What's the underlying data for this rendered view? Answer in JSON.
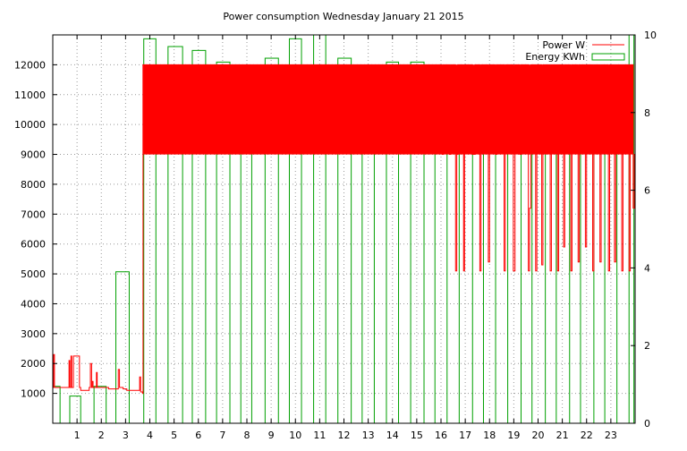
{
  "chart_data": {
    "type": "bar",
    "title": "Power consumption Wednesday January 21 2015",
    "xlabel": "",
    "ylabel": "",
    "xlim": [
      0,
      24
    ],
    "ylim": [
      0,
      13000
    ],
    "y2lim": [
      0,
      10
    ],
    "grid": true,
    "legend_position": "top-right",
    "x_ticks": [
      "1",
      "2",
      "3",
      "4",
      "5",
      "6",
      "7",
      "8",
      "9",
      "10",
      "11",
      "12",
      "13",
      "14",
      "15",
      "16",
      "17",
      "18",
      "19",
      "20",
      "21",
      "22",
      "23"
    ],
    "y_ticks": [
      1000,
      2000,
      3000,
      4000,
      5000,
      6000,
      7000,
      8000,
      9000,
      10000,
      11000,
      12000
    ],
    "y2_ticks": [
      0,
      2,
      4,
      6,
      8,
      10
    ],
    "colors": {
      "power": "#ff0000",
      "energy": "#00a000",
      "grid": "#999999"
    },
    "series": [
      {
        "name": "Power W",
        "axis": "y",
        "style": "step-line",
        "points": [
          [
            0.0,
            1200
          ],
          [
            0.03,
            2300
          ],
          [
            0.07,
            1200
          ],
          [
            0.3,
            1200
          ],
          [
            0.62,
            1200
          ],
          [
            0.67,
            2100
          ],
          [
            0.7,
            1200
          ],
          [
            0.75,
            2250
          ],
          [
            0.78,
            1200
          ],
          [
            0.85,
            2250
          ],
          [
            1.0,
            2250
          ],
          [
            1.1,
            1200
          ],
          [
            1.15,
            1100
          ],
          [
            1.5,
            1200
          ],
          [
            1.55,
            2000
          ],
          [
            1.6,
            1200
          ],
          [
            1.62,
            1400
          ],
          [
            1.66,
            1200
          ],
          [
            1.8,
            1700
          ],
          [
            1.83,
            1200
          ],
          [
            2.3,
            1150
          ],
          [
            2.65,
            1150
          ],
          [
            2.7,
            1800
          ],
          [
            2.75,
            1200
          ],
          [
            2.9,
            1150
          ],
          [
            3.05,
            1100
          ],
          [
            3.55,
            1100
          ],
          [
            3.58,
            1550
          ],
          [
            3.62,
            1050
          ],
          [
            3.7,
            1000
          ],
          [
            3.72,
            12000
          ],
          [
            16.0,
            12000
          ],
          [
            16.05,
            9000
          ],
          [
            16.1,
            12000
          ],
          [
            16.3,
            12000
          ],
          [
            16.35,
            9000
          ],
          [
            16.4,
            12000
          ],
          [
            16.58,
            12000
          ],
          [
            16.6,
            5100
          ],
          [
            16.65,
            9000
          ],
          [
            16.7,
            12000
          ],
          [
            16.9,
            12000
          ],
          [
            16.93,
            5100
          ],
          [
            16.97,
            12000
          ],
          [
            17.2,
            12000
          ],
          [
            17.3,
            9000
          ],
          [
            17.4,
            12000
          ],
          [
            17.55,
            12000
          ],
          [
            17.6,
            5100
          ],
          [
            17.65,
            12000
          ],
          [
            17.9,
            12000
          ],
          [
            17.95,
            5400
          ],
          [
            18.0,
            12000
          ],
          [
            18.2,
            12000
          ],
          [
            18.25,
            9000
          ],
          [
            18.3,
            12000
          ],
          [
            18.55,
            12000
          ],
          [
            18.6,
            5100
          ],
          [
            18.65,
            12000
          ],
          [
            18.95,
            12000
          ],
          [
            18.98,
            5100
          ],
          [
            19.05,
            12000
          ],
          [
            19.2,
            12000
          ],
          [
            19.25,
            9000
          ],
          [
            19.3,
            12000
          ],
          [
            19.55,
            12000
          ],
          [
            19.6,
            5100
          ],
          [
            19.65,
            7200
          ],
          [
            19.7,
            12000
          ],
          [
            19.85,
            12000
          ],
          [
            19.9,
            5100
          ],
          [
            19.95,
            12000
          ],
          [
            20.1,
            12000
          ],
          [
            20.15,
            5300
          ],
          [
            20.2,
            12000
          ],
          [
            20.45,
            12000
          ],
          [
            20.5,
            5100
          ],
          [
            20.55,
            12000
          ],
          [
            20.75,
            12000
          ],
          [
            20.8,
            5100
          ],
          [
            20.85,
            12000
          ],
          [
            21.0,
            12000
          ],
          [
            21.05,
            5900
          ],
          [
            21.1,
            12000
          ],
          [
            21.3,
            12000
          ],
          [
            21.35,
            5100
          ],
          [
            21.4,
            12000
          ],
          [
            21.6,
            12000
          ],
          [
            21.65,
            5400
          ],
          [
            21.7,
            12000
          ],
          [
            21.9,
            12000
          ],
          [
            21.95,
            5900
          ],
          [
            22.0,
            12000
          ],
          [
            22.2,
            12000
          ],
          [
            22.25,
            5100
          ],
          [
            22.3,
            12000
          ],
          [
            22.5,
            12000
          ],
          [
            22.55,
            5400
          ],
          [
            22.6,
            12000
          ],
          [
            22.85,
            12000
          ],
          [
            22.9,
            5100
          ],
          [
            22.95,
            12000
          ],
          [
            23.1,
            12000
          ],
          [
            23.15,
            5400
          ],
          [
            23.2,
            12000
          ],
          [
            23.4,
            12000
          ],
          [
            23.45,
            5100
          ],
          [
            23.5,
            12000
          ],
          [
            23.7,
            12000
          ],
          [
            23.75,
            5100
          ],
          [
            23.8,
            12000
          ],
          [
            23.88,
            12000
          ],
          [
            23.92,
            7200
          ],
          [
            23.97,
            9000
          ],
          [
            24.0,
            9000
          ]
        ]
      },
      {
        "name": "Energy KWh",
        "axis": "y2",
        "style": "hollow-bar",
        "bars": [
          [
            0.0,
            0.95
          ],
          [
            0.3,
            0.0
          ],
          [
            0.7,
            0.7
          ],
          [
            1.15,
            0.0
          ],
          [
            1.7,
            0.95
          ],
          [
            2.2,
            0.0
          ],
          [
            2.6,
            3.9
          ],
          [
            3.15,
            0.0
          ],
          [
            3.75,
            9.9
          ],
          [
            4.25,
            0.0
          ],
          [
            4.75,
            9.7
          ],
          [
            5.35,
            0.0
          ],
          [
            5.75,
            9.6
          ],
          [
            6.3,
            0.0
          ],
          [
            6.75,
            9.3
          ],
          [
            7.3,
            0.0
          ],
          [
            7.75,
            8.9
          ],
          [
            8.2,
            0.0
          ],
          [
            8.75,
            9.4
          ],
          [
            9.3,
            0.0
          ],
          [
            9.75,
            9.9
          ],
          [
            10.25,
            0.0
          ],
          [
            10.75,
            10.0
          ],
          [
            11.25,
            0.0
          ],
          [
            11.75,
            9.4
          ],
          [
            12.3,
            0.0
          ],
          [
            12.75,
            9.2
          ],
          [
            13.25,
            0.0
          ],
          [
            13.75,
            9.3
          ],
          [
            14.25,
            0.0
          ],
          [
            14.75,
            9.3
          ],
          [
            15.3,
            0.0
          ],
          [
            15.75,
            9.1
          ],
          [
            16.25,
            0.0
          ],
          [
            16.75,
            8.8
          ],
          [
            17.3,
            0.0
          ],
          [
            17.75,
            8.9
          ],
          [
            18.25,
            0.0
          ],
          [
            18.75,
            8.4
          ],
          [
            19.3,
            0.0
          ],
          [
            19.75,
            7.8
          ],
          [
            20.3,
            0.0
          ],
          [
            20.75,
            7.0
          ],
          [
            21.3,
            0.0
          ],
          [
            21.75,
            7.8
          ],
          [
            22.3,
            0.0
          ],
          [
            22.75,
            8.1
          ],
          [
            23.25,
            0.0
          ],
          [
            23.75,
            10.0
          ],
          [
            23.95,
            0.0
          ]
        ]
      }
    ]
  }
}
